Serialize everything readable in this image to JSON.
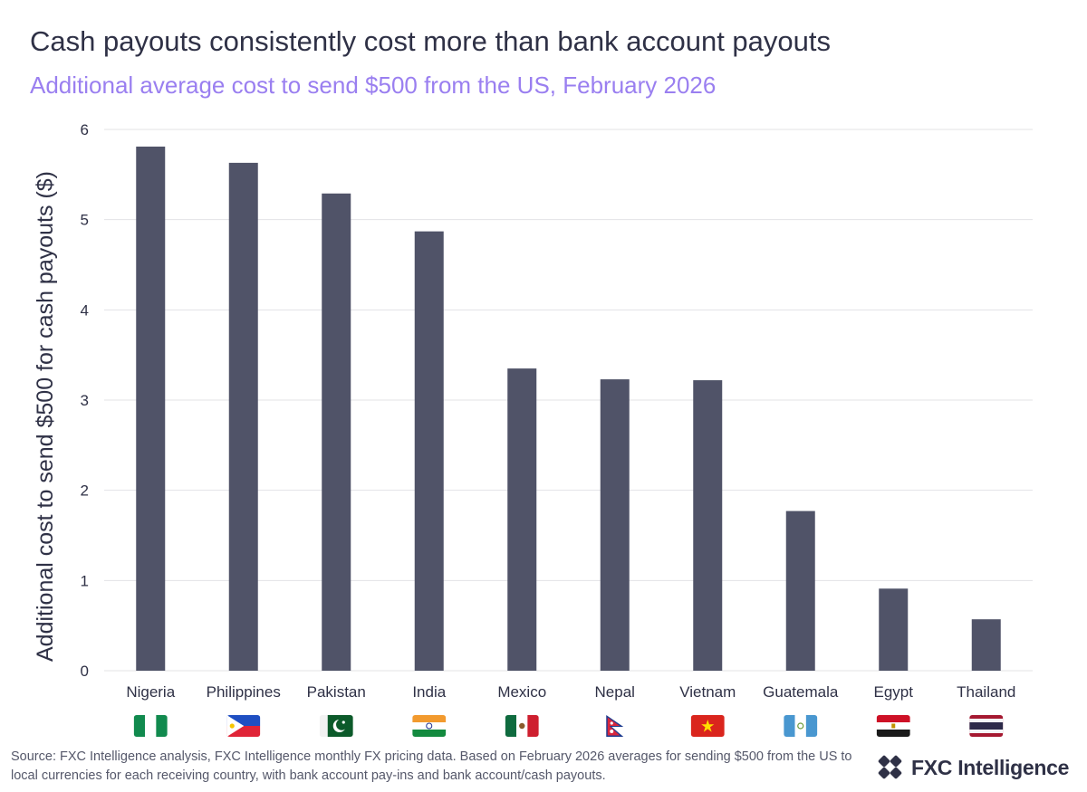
{
  "header": {
    "title": "Cash payouts consistently cost more than bank account payouts",
    "subtitle": "Additional average cost to send $500 from the US, February 2026"
  },
  "chart_data": {
    "type": "bar",
    "title": "Cash payouts consistently cost more than bank account payouts",
    "subtitle": "Additional average cost to send $500 from the US, February 2026",
    "xlabel": "",
    "ylabel": "Additional cost to send $500 for cash payouts ($)",
    "categories": [
      "Nigeria",
      "Philippines",
      "Pakistan",
      "India",
      "Mexico",
      "Nepal",
      "Vietnam",
      "Guatemala",
      "Egypt",
      "Thailand"
    ],
    "values": [
      5.81,
      5.63,
      5.29,
      4.87,
      3.35,
      3.23,
      3.22,
      1.77,
      0.91,
      0.57
    ],
    "ylim": [
      0,
      6
    ],
    "yticks": [
      0,
      1,
      2,
      3,
      4,
      5,
      6
    ],
    "grid": true,
    "legend": "none",
    "bar_color": "#505368",
    "flag_icons": [
      "nigeria-flag-icon",
      "philippines-flag-icon",
      "pakistan-flag-icon",
      "india-flag-icon",
      "mexico-flag-icon",
      "nepal-flag-icon",
      "vietnam-flag-icon",
      "guatemala-flag-icon",
      "egypt-flag-icon",
      "thailand-flag-icon"
    ]
  },
  "footer": {
    "source": "Source: FXC Intelligence analysis, FXC Intelligence monthly FX pricing data. Based on February 2026 averages for sending $500 from the US to local currencies for each receiving country, with bank account pay-ins and bank account/cash payouts.",
    "logo_text": "FXC Intelligence",
    "logo_icon": "fxc-logo-icon"
  },
  "colors": {
    "title": "#2f3146",
    "subtitle": "#9a7ff0",
    "bar": "#505368",
    "grid": "#e3e3e6"
  }
}
